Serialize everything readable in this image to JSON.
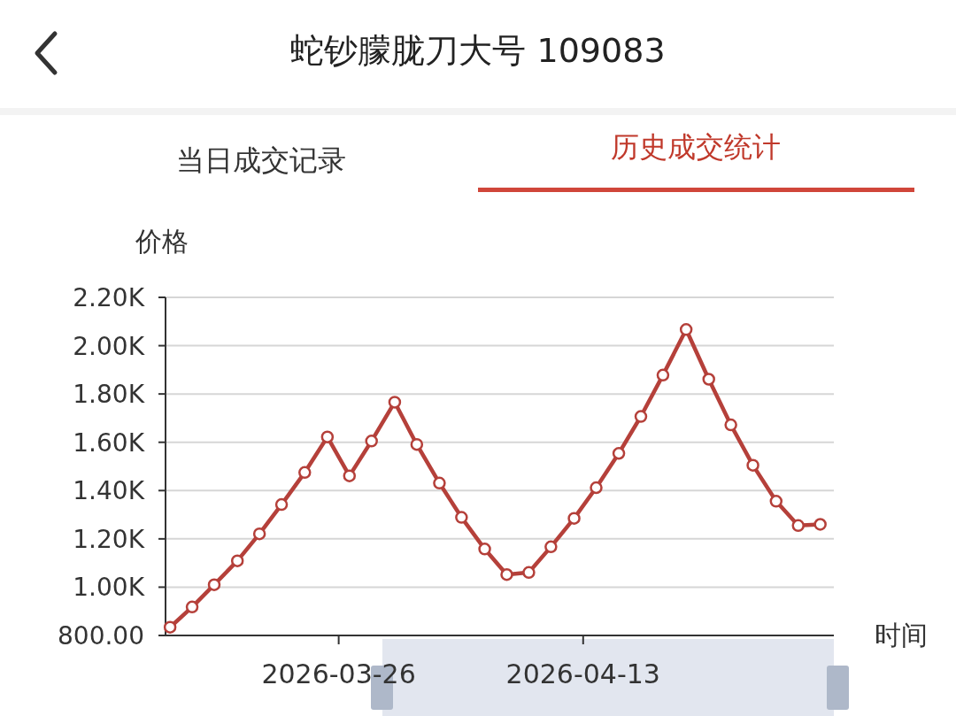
{
  "chart_data": {
    "type": "line",
    "title": "蛇钞朦胧刀大号 109083",
    "annotations": [
      "当日成交记录",
      "历史成交统计"
    ],
    "xlabel": "时间",
    "ylabel": "价格",
    "x": [
      "2026-03-13T14:00",
      "2026-03-15T05:00",
      "2026-03-16T20:00",
      "2026-03-18T13:00",
      "2026-03-20T04:00",
      "2026-03-21T19:00",
      "2026-03-23T12:00",
      "2026-03-25T04:00",
      "2026-03-26T19:00",
      "2026-03-28T10:00",
      "2026-03-30T03:00",
      "2026-03-31T18:00",
      "2026-04-02T10:00",
      "2026-04-04T01:00",
      "2026-04-05T18:00",
      "2026-04-07T09:00",
      "2026-04-09T00:00",
      "2026-04-10T15:00",
      "2026-04-12T08:00",
      "2026-04-13T23:00",
      "2026-04-15T15:00",
      "2026-04-17T06:00",
      "2026-04-18T21:00",
      "2026-04-20T14:00",
      "2026-04-22T06:00",
      "2026-04-23T21:00",
      "2026-04-25T12:00",
      "2026-04-27T05:00",
      "2026-04-28T20:00",
      "2026-04-30T11:00"
    ],
    "xlim": [
      "2026-03-13T06:00",
      "2026-05-01T11:00"
    ],
    "xticks": [
      {
        "value": "2026-03-26",
        "label": "2026-03-26"
      },
      {
        "value": "2026-04-13",
        "label": "2026-04-13"
      }
    ],
    "ylim": [
      800,
      2200
    ],
    "yticks": [
      {
        "value": 800,
        "label": "800.00"
      },
      {
        "value": 1000,
        "label": "1.00K"
      },
      {
        "value": 1200,
        "label": "1.20K"
      },
      {
        "value": 1400,
        "label": "1.40K"
      },
      {
        "value": 1600,
        "label": "1.60K"
      },
      {
        "value": 1800,
        "label": "1.80K"
      },
      {
        "value": 2000,
        "label": "2.00K"
      },
      {
        "value": 2200,
        "label": "2.20K"
      }
    ],
    "series": [
      {
        "color": "#b5403a",
        "values": [
          834,
          918,
          1010,
          1109,
          1221,
          1342,
          1475,
          1622,
          1461,
          1605,
          1766,
          1591,
          1431,
          1289,
          1158,
          1052,
          1061,
          1167,
          1285,
          1412,
          1554,
          1707,
          1878,
          2067,
          1861,
          1672,
          1505,
          1356,
          1255,
          1260
        ]
      }
    ],
    "marker": "circle",
    "grid": "y"
  }
}
